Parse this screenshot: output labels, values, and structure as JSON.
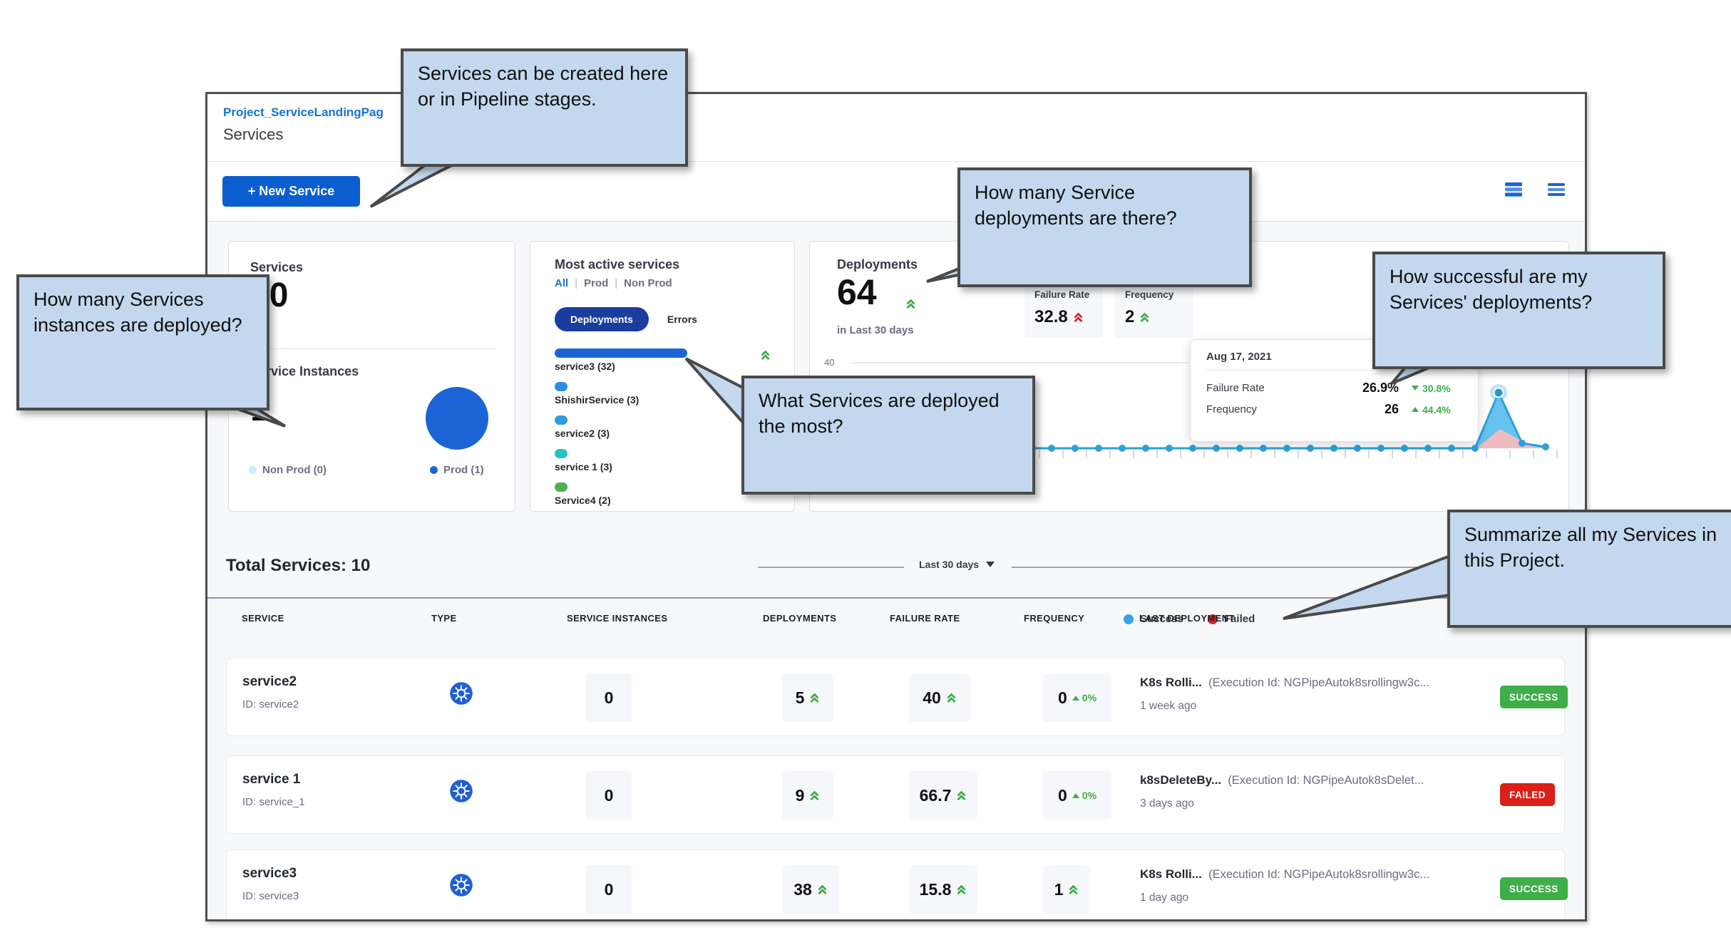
{
  "header": {
    "breadcrumb": "Project_ServiceLandingPag",
    "title": "Services"
  },
  "toolbar": {
    "new_service": "+ New Service"
  },
  "callouts": {
    "create": "Services can be created here or in Pipeline stages.",
    "instances": "How many Services instances are deployed?",
    "deployments": "How many Service deployments are there?",
    "most_deployed": "What Services are deployed the most?",
    "success": "How successful are my Services' deployments?",
    "summarize": "Summarize all my Services in this Project."
  },
  "summary": {
    "services_label": "Services",
    "services_count": "10",
    "instances_label": "Service Instances",
    "instances_count": "1",
    "legend_nonprod": "Non Prod (0)",
    "legend_prod": "Prod (1)",
    "nonprod_color": "#cdeefa",
    "prod_color": "#1b64d6"
  },
  "most_active": {
    "title": "Most active services",
    "filter_all": "All",
    "filter_prod": "Prod",
    "filter_nonprod": "Non Prod",
    "tab_deployments": "Deployments",
    "tab_errors": "Errors",
    "bars": [
      {
        "label": "service3 (32)",
        "color": "#1b64d6"
      },
      {
        "label": "ShishirService (3)",
        "color": "#2d8ae5"
      },
      {
        "label": "service2 (3)",
        "color": "#2f9bdb"
      },
      {
        "label": "service 1 (3)",
        "color": "#22c3c3"
      },
      {
        "label": "Service4 (2)",
        "color": "#4caf50"
      }
    ]
  },
  "deployments": {
    "title": "Deployments",
    "count": "64",
    "subtitle": "in Last 30 days",
    "failure_label": "Failure Rate",
    "failure_value": "32.8",
    "frequency_label": "Frequency",
    "frequency_value": "2",
    "y_tick": "40",
    "legend_success": "Success",
    "legend_failed": "Failed",
    "success_color": "#36a3e8",
    "failed_color": "#e02424",
    "tooltip": {
      "date": "Aug 17, 2021",
      "failure_label": "Failure Rate",
      "failure_value": "26.9%",
      "failure_delta": "30.8%",
      "frequency_label": "Frequency",
      "frequency_value": "26",
      "frequency_delta": "44.4%"
    }
  },
  "list": {
    "total": "Total Services: 10",
    "range": "Last 30 days",
    "headers": [
      "SERVICE",
      "TYPE",
      "SERVICE INSTANCES",
      "DEPLOYMENTS",
      "FAILURE RATE",
      "FREQUENCY",
      "LAST DEPLOYMENT"
    ],
    "rows": [
      {
        "name": "service2",
        "id": "ID: service2",
        "instances": "0",
        "deployments": "5",
        "failure": "40",
        "frequency": "0",
        "freq_delta": "0%",
        "pipeline": "K8s Rolli...",
        "execution": "(Execution Id: NGPipeAutok8srollingw3c...",
        "time": "1 week ago",
        "status": "SUCCESS"
      },
      {
        "name": "service 1",
        "id": "ID: service_1",
        "instances": "0",
        "deployments": "9",
        "failure": "66.7",
        "frequency": "0",
        "freq_delta": "0%",
        "pipeline": "k8sDeleteBy...",
        "execution": "(Execution Id: NGPipeAutok8sDelet...",
        "time": "3 days ago",
        "status": "FAILED"
      },
      {
        "name": "service3",
        "id": "ID: service3",
        "instances": "0",
        "deployments": "38",
        "failure": "15.8",
        "frequency": "1",
        "freq_delta": "",
        "pipeline": "K8s Rolli...",
        "execution": "(Execution Id: NGPipeAutok8srollingw3c...",
        "time": "1 day ago",
        "status": "SUCCESS"
      }
    ]
  },
  "chart_data": [
    {
      "type": "bar",
      "orientation": "horizontal",
      "title": "Most active services — Deployments",
      "categories": [
        "service3",
        "ShishirService",
        "service2",
        "service 1",
        "Service4"
      ],
      "values": [
        32,
        3,
        3,
        3,
        2
      ]
    },
    {
      "type": "area",
      "title": "Deployments in Last 30 days",
      "ylim": [
        0,
        40
      ],
      "x": "last 30 days (daily)",
      "series": [
        {
          "name": "Success",
          "values_note": "0 on all days except a spike of ~26 on Aug 17, 2021, tapering to 0"
        },
        {
          "name": "Failed",
          "values_note": "0 on all days except ~7 around Aug 17, 2021"
        }
      ],
      "annotations": [
        "Aug 17, 2021 — Failure Rate 26.9% (down 30.8%), Frequency 26 (up 44.4%)"
      ],
      "legend_position": "bottom"
    }
  ]
}
